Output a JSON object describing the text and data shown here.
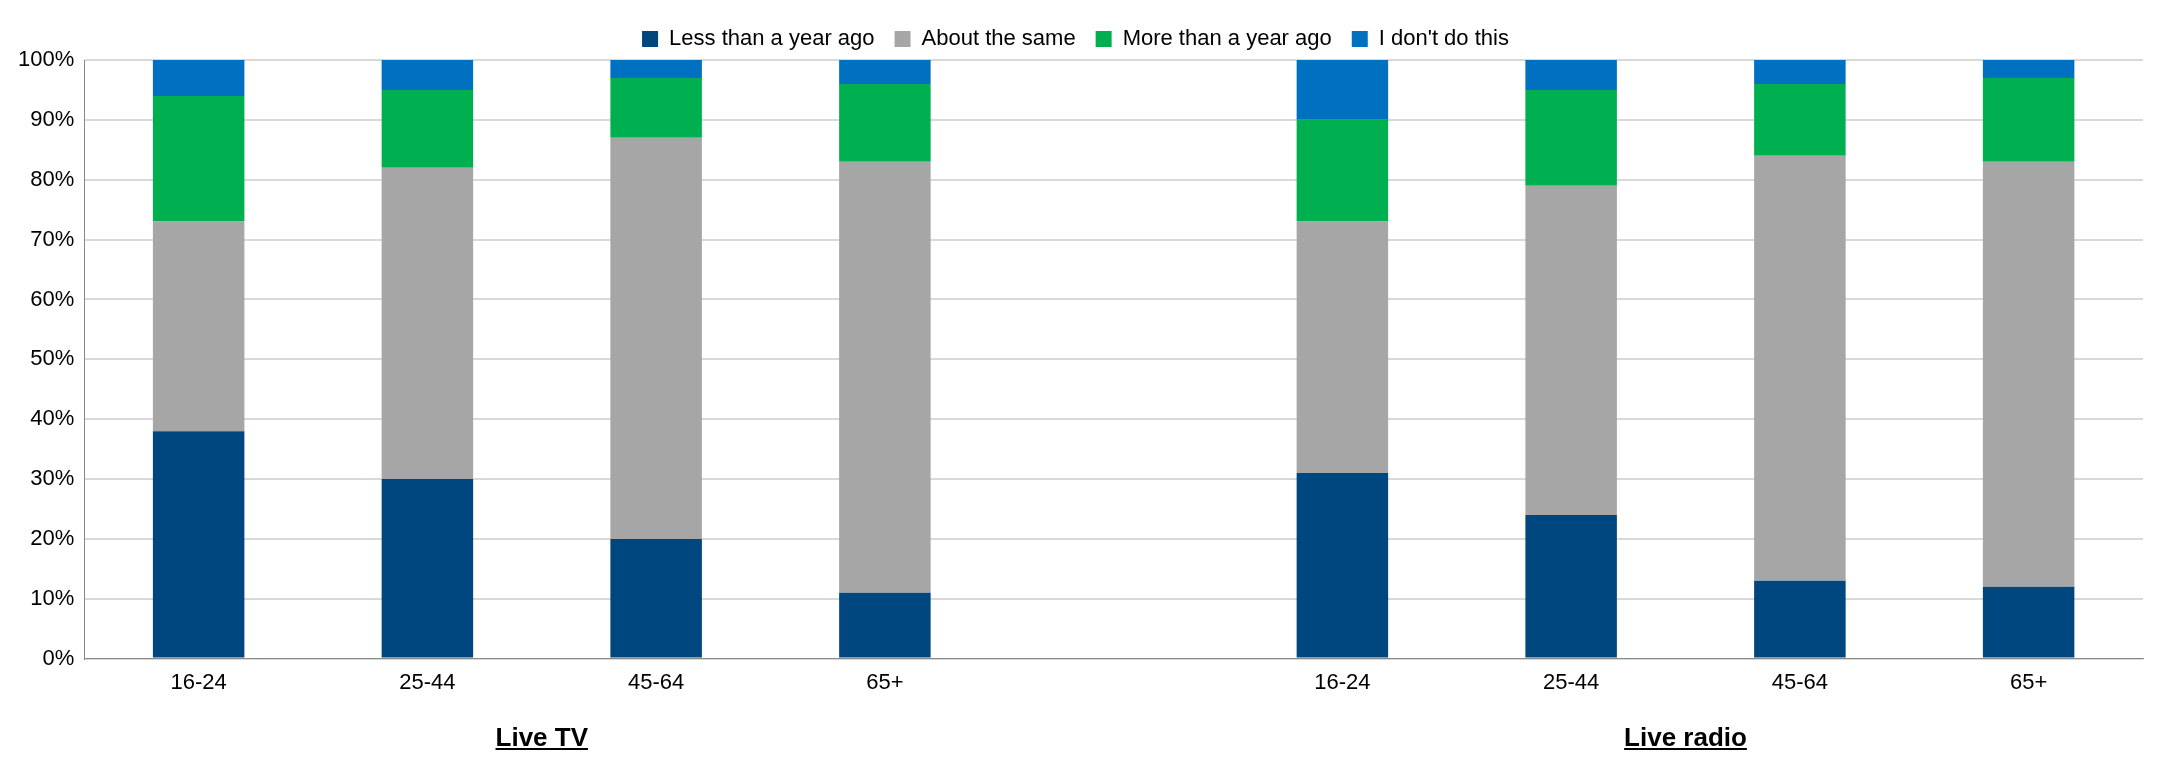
{
  "chart_data": {
    "type": "bar",
    "stacked": true,
    "categories": [
      "16-24",
      "25-44",
      "45-64",
      "65+",
      null,
      "16-24",
      "25-44",
      "45-64",
      "65+"
    ],
    "series": [
      {
        "name": "Less than a year ago",
        "color": "#00467f",
        "values": [
          38,
          30,
          20,
          11,
          null,
          31,
          24,
          13,
          12
        ]
      },
      {
        "name": "About the same",
        "color": "#a6a6a6",
        "values": [
          35,
          52,
          67,
          72,
          null,
          42,
          55,
          71,
          71
        ]
      },
      {
        "name": "More than a year ago",
        "color": "#00b050",
        "values": [
          21,
          13,
          10,
          13,
          null,
          17,
          16,
          12,
          14
        ]
      },
      {
        "name": "I don't do this",
        "color": "#0070c0",
        "values": [
          6,
          5,
          3,
          4,
          null,
          10,
          5,
          4,
          3
        ]
      }
    ],
    "ylim": [
      0,
      100
    ],
    "yticks": [
      {
        "value": 0,
        "label": "0%"
      },
      {
        "value": 10,
        "label": "10%"
      },
      {
        "value": 20,
        "label": "20%"
      },
      {
        "value": 30,
        "label": "30%"
      },
      {
        "value": 40,
        "label": "40%"
      },
      {
        "value": 50,
        "label": "50%"
      },
      {
        "value": 60,
        "label": "60%"
      },
      {
        "value": 70,
        "label": "70%"
      },
      {
        "value": 80,
        "label": "80%"
      },
      {
        "value": 90,
        "label": "90%"
      },
      {
        "value": 100,
        "label": "100%"
      }
    ],
    "grid": "y",
    "legend": "top",
    "marker": "square",
    "annotations": [
      "Live TV",
      "Live radio"
    ]
  }
}
